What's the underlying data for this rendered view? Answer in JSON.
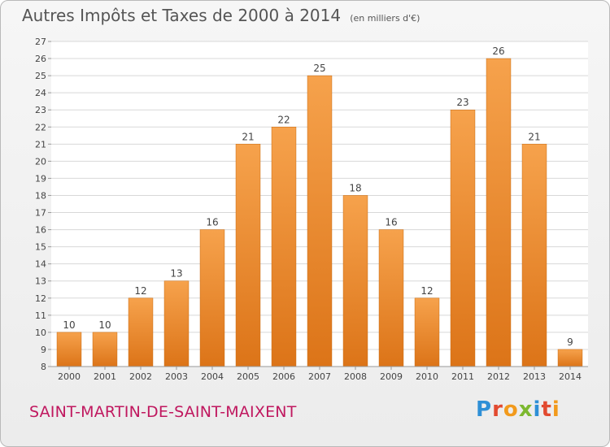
{
  "title": "Autres Impôts et Taxes de 2000 à 2014",
  "subtitle": "(en milliers d'€)",
  "commune": "SAINT-MARTIN-DE-SAINT-MAIXENT",
  "logo": {
    "text": "Proxiti",
    "letters": [
      {
        "ch": "P",
        "color": "#2e8fd6"
      },
      {
        "ch": "r",
        "color": "#e24a30"
      },
      {
        "ch": "o",
        "color": "#f29a1c"
      },
      {
        "ch": "x",
        "color": "#7cb82f"
      },
      {
        "ch": "i",
        "color": "#2e8fd6"
      },
      {
        "ch": "t",
        "color": "#e24a30"
      },
      {
        "ch": "i",
        "color": "#f29a1c"
      }
    ]
  },
  "colors": {
    "bar_light": "#f6a24c",
    "bar_dark": "#dc7418",
    "grid": "#d8d8d8",
    "text": "#444444"
  },
  "chart_data": {
    "type": "bar",
    "categories": [
      "2000",
      "2001",
      "2002",
      "2003",
      "2004",
      "2005",
      "2006",
      "2007",
      "2008",
      "2009",
      "2010",
      "2011",
      "2012",
      "2013",
      "2014"
    ],
    "values": [
      10,
      10,
      12,
      13,
      16,
      21,
      22,
      25,
      18,
      16,
      12,
      23,
      26,
      21,
      9
    ],
    "ylim": [
      8,
      27
    ],
    "yticks": [
      8,
      9,
      10,
      11,
      12,
      13,
      14,
      15,
      16,
      17,
      18,
      19,
      20,
      21,
      22,
      23,
      24,
      25,
      26,
      27
    ],
    "grid": true,
    "data_labels": true
  }
}
